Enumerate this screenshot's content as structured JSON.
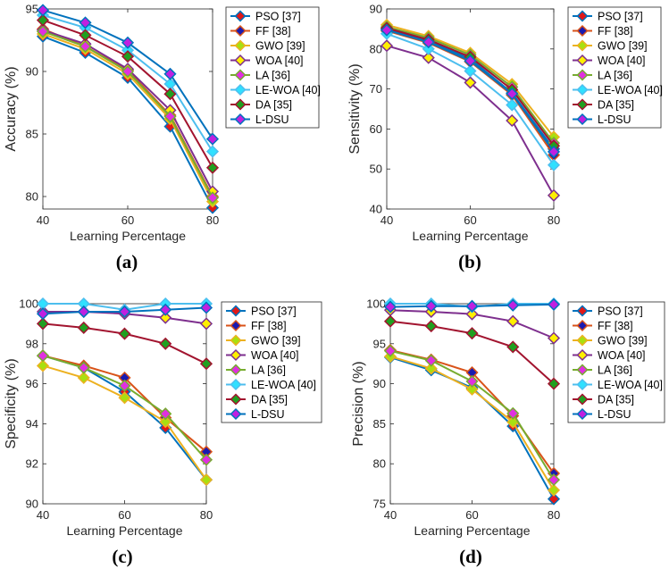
{
  "figure": {
    "legend_items": [
      {
        "name": "PSO [37]",
        "color": "#0072BD",
        "marker_fill": "#E01818"
      },
      {
        "name": "FF [38]",
        "color": "#D95319",
        "marker_fill": "#1A1AB0"
      },
      {
        "name": "GWO [39]",
        "color": "#EDB120",
        "marker_fill": "#A8E010"
      },
      {
        "name": "WOA [40]",
        "color": "#7E2F8E",
        "marker_fill": "#FFF000"
      },
      {
        "name": "LA [36]",
        "color": "#77AC30",
        "marker_fill": "#E030E0"
      },
      {
        "name": "LE-WOA [40]",
        "color": "#4DBEEE",
        "marker_fill": "#30E0FF"
      },
      {
        "name": "DA [35]",
        "color": "#A2142F",
        "marker_fill": "#20A020"
      },
      {
        "name": "L-DSU",
        "color": "#0072BD",
        "marker_fill": "#C020E0"
      }
    ]
  },
  "chart_data": [
    {
      "type": "line",
      "caption": "(a)",
      "xlabel": "Learning Percentage",
      "ylabel": "Accuracy (%)",
      "xlim": [
        40,
        80
      ],
      "ylim": [
        79,
        95
      ],
      "xticks": [
        40,
        60,
        80
      ],
      "yticks": [
        80,
        85,
        90,
        95
      ],
      "x": [
        40,
        50,
        60,
        70,
        80
      ],
      "series": [
        {
          "name": "PSO [37]",
          "values": [
            92.8,
            91.5,
            89.5,
            85.6,
            79.1
          ]
        },
        {
          "name": "FF [38]",
          "values": [
            93.4,
            92.0,
            90.1,
            86.5,
            80.0
          ]
        },
        {
          "name": "GWO [39]",
          "values": [
            93.0,
            91.8,
            89.8,
            86.2,
            79.6
          ]
        },
        {
          "name": "WOA [40]",
          "values": [
            93.3,
            92.2,
            90.2,
            86.9,
            80.4
          ]
        },
        {
          "name": "LA [36]",
          "values": [
            93.2,
            92.0,
            90.0,
            86.4,
            79.9
          ]
        },
        {
          "name": "LE-WOA [40]",
          "values": [
            94.5,
            93.5,
            91.7,
            89.0,
            83.6
          ]
        },
        {
          "name": "DA [35]",
          "values": [
            94.1,
            92.9,
            91.2,
            88.2,
            82.3
          ]
        },
        {
          "name": "L-DSU",
          "values": [
            94.9,
            93.9,
            92.3,
            89.8,
            84.6
          ]
        }
      ]
    },
    {
      "type": "line",
      "caption": "(b)",
      "xlabel": "Learning Percentage",
      "ylabel": "Sensitivity (%)",
      "xlim": [
        40,
        80
      ],
      "ylim": [
        40,
        90
      ],
      "xticks": [
        40,
        60,
        80
      ],
      "yticks": [
        40,
        50,
        60,
        70,
        80,
        90
      ],
      "x": [
        40,
        50,
        60,
        70,
        80
      ],
      "series": [
        {
          "name": "PSO [37]",
          "values": [
            85.0,
            82.0,
            77.5,
            69.0,
            55.0
          ]
        },
        {
          "name": "FF [38]",
          "values": [
            84.5,
            81.5,
            76.8,
            68.5,
            53.5
          ]
        },
        {
          "name": "GWO [39]",
          "values": [
            86.0,
            83.2,
            79.0,
            71.2,
            58.0
          ]
        },
        {
          "name": "WOA [40]",
          "values": [
            80.8,
            77.8,
            71.6,
            62.1,
            43.4
          ]
        },
        {
          "name": "LA [36]",
          "values": [
            85.5,
            82.8,
            78.5,
            70.5,
            56.5
          ]
        },
        {
          "name": "LE-WOA [40]",
          "values": [
            83.8,
            80.0,
            74.5,
            66.0,
            51.0
          ]
        },
        {
          "name": "DA [35]",
          "values": [
            85.2,
            82.3,
            78.0,
            69.8,
            55.8
          ]
        },
        {
          "name": "L-DSU",
          "values": [
            84.7,
            81.7,
            77.0,
            68.8,
            54.3
          ]
        }
      ]
    },
    {
      "type": "line",
      "caption": "(c)",
      "xlabel": "Learning Percentage",
      "ylabel": "Specificity (%)",
      "xlim": [
        40,
        80
      ],
      "ylim": [
        90,
        100
      ],
      "xticks": [
        40,
        60,
        80
      ],
      "yticks": [
        90,
        92,
        94,
        96,
        98,
        100
      ],
      "x": [
        40,
        50,
        60,
        70,
        80
      ],
      "series": [
        {
          "name": "PSO [37]",
          "values": [
            97.4,
            96.8,
            95.6,
            93.8,
            91.2
          ]
        },
        {
          "name": "FF [38]",
          "values": [
            97.4,
            96.9,
            96.3,
            94.3,
            92.6
          ]
        },
        {
          "name": "GWO [39]",
          "values": [
            96.9,
            96.3,
            95.3,
            94.1,
            91.2
          ]
        },
        {
          "name": "WOA [40]",
          "values": [
            99.6,
            99.6,
            99.5,
            99.3,
            99.0
          ]
        },
        {
          "name": "LA [36]",
          "values": [
            97.4,
            96.8,
            95.9,
            94.5,
            92.2
          ]
        },
        {
          "name": "LE-WOA [40]",
          "values": [
            100.0,
            100.0,
            99.7,
            100.0,
            100.0
          ]
        },
        {
          "name": "DA [35]",
          "values": [
            99.0,
            98.8,
            98.5,
            98.0,
            97.0
          ]
        },
        {
          "name": "L-DSU",
          "values": [
            99.5,
            99.6,
            99.6,
            99.7,
            99.8
          ]
        }
      ]
    },
    {
      "type": "line",
      "caption": "(d)",
      "xlabel": "Learning Percentage",
      "ylabel": "Precision (%)",
      "xlim": [
        40,
        80
      ],
      "ylim": [
        75,
        100
      ],
      "xticks": [
        40,
        60,
        80
      ],
      "yticks": [
        75,
        80,
        85,
        90,
        95,
        100
      ],
      "x": [
        40,
        50,
        60,
        70,
        80
      ],
      "series": [
        {
          "name": "PSO [37]",
          "values": [
            93.3,
            91.7,
            89.5,
            84.7,
            75.6
          ]
        },
        {
          "name": "FF [38]",
          "values": [
            94.2,
            93.0,
            91.4,
            86.0,
            78.8
          ]
        },
        {
          "name": "GWO [39]",
          "values": [
            93.4,
            91.9,
            89.3,
            85.2,
            76.7
          ]
        },
        {
          "name": "WOA [40]",
          "values": [
            99.2,
            99.0,
            98.7,
            97.8,
            95.7
          ]
        },
        {
          "name": "LA [36]",
          "values": [
            94.1,
            92.9,
            90.3,
            86.3,
            78.0
          ]
        },
        {
          "name": "LE-WOA [40]",
          "values": [
            100.0,
            100.0,
            99.6,
            100.0,
            100.0
          ]
        },
        {
          "name": "DA [35]",
          "values": [
            97.8,
            97.2,
            96.3,
            94.6,
            90.0
          ]
        },
        {
          "name": "L-DSU",
          "values": [
            99.6,
            99.7,
            99.7,
            99.8,
            99.9
          ]
        }
      ]
    }
  ]
}
